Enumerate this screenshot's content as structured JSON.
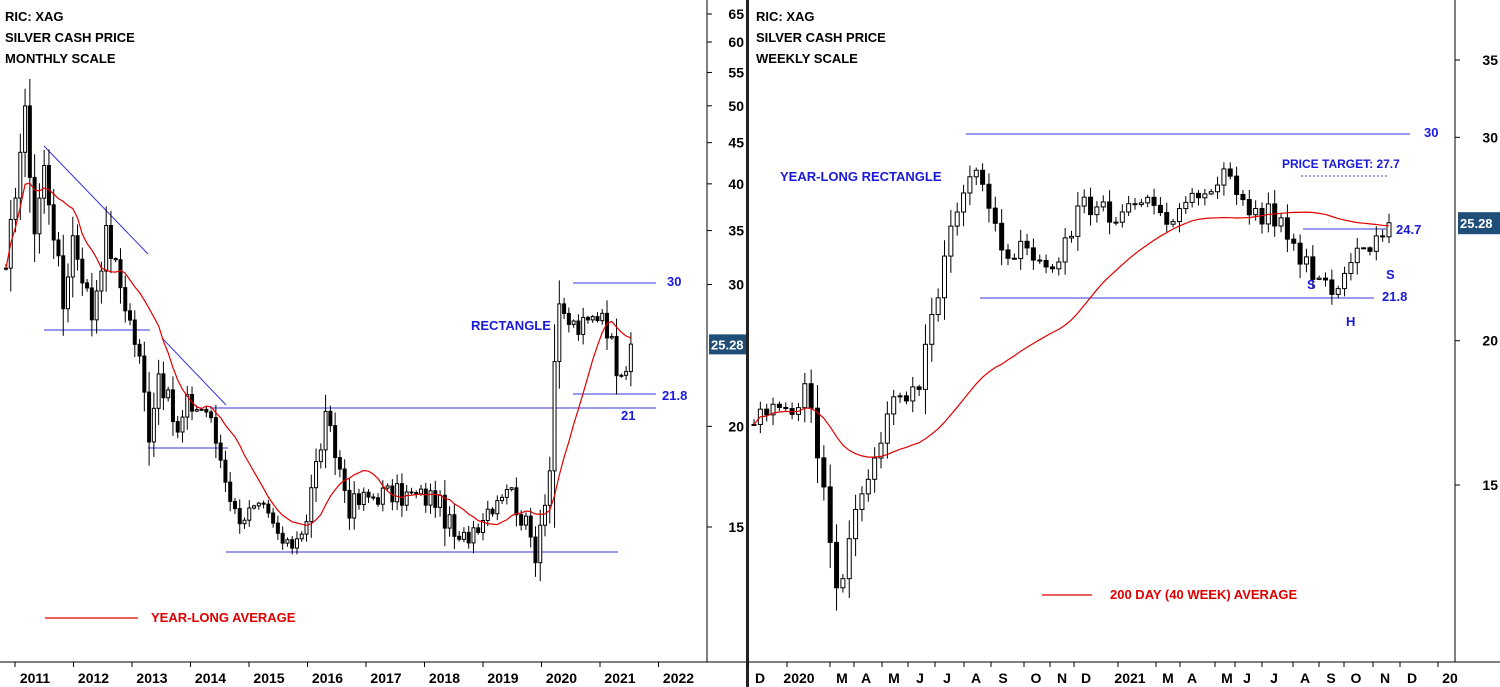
{
  "chart_data": [
    {
      "type": "candlestick",
      "ric": "RIC: XAG",
      "title": "SILVER CASH PRICE",
      "subtitle": "MONTHLY SCALE",
      "scale": "log",
      "ylim": [
        12,
        68
      ],
      "y_ticks": [
        15,
        20,
        30,
        35,
        40,
        45,
        50,
        55,
        60,
        65
      ],
      "x_ticks": [
        "2011",
        "2012",
        "2013",
        "2014",
        "2015",
        "2016",
        "2017",
        "2018",
        "2019",
        "2020",
        "2021",
        "2022"
      ],
      "last_price": "25.28",
      "legend": [
        {
          "label": "YEAR-LONG AVERAGE",
          "color": "#e00000"
        }
      ],
      "annotations": [
        "30",
        "RECTANGLE",
        "21.8",
        "21"
      ],
      "monthly_close_approx": [
        {
          "date": "2010-12",
          "close": 30.6
        },
        {
          "date": "2011-04",
          "close": 48.6
        },
        {
          "date": "2011-06",
          "close": 35.0
        },
        {
          "date": "2011-08",
          "close": 41.8
        },
        {
          "date": "2011-12",
          "close": 28.2
        },
        {
          "date": "2012-02",
          "close": 34.5
        },
        {
          "date": "2012-06",
          "close": 27.5
        },
        {
          "date": "2012-09",
          "close": 34.6
        },
        {
          "date": "2012-12",
          "close": 29.9
        },
        {
          "date": "2013-04",
          "close": 24.1
        },
        {
          "date": "2013-06",
          "close": 19.7
        },
        {
          "date": "2013-08",
          "close": 23.4
        },
        {
          "date": "2013-12",
          "close": 19.5
        },
        {
          "date": "2014-02",
          "close": 21.3
        },
        {
          "date": "2014-06",
          "close": 21.0
        },
        {
          "date": "2014-12",
          "close": 15.6
        },
        {
          "date": "2015-06",
          "close": 15.6
        },
        {
          "date": "2015-11",
          "close": 14.0
        },
        {
          "date": "2016-03",
          "close": 15.4
        },
        {
          "date": "2016-07",
          "close": 20.3
        },
        {
          "date": "2016-12",
          "close": 15.9
        },
        {
          "date": "2017-06",
          "close": 16.5
        },
        {
          "date": "2018-06",
          "close": 16.3
        },
        {
          "date": "2018-11",
          "close": 14.2
        },
        {
          "date": "2019-07",
          "close": 16.4
        },
        {
          "date": "2019-09",
          "close": 17.0
        },
        {
          "date": "2020-03",
          "close": 14.0
        },
        {
          "date": "2020-06",
          "close": 17.7
        },
        {
          "date": "2020-07",
          "close": 24.3
        },
        {
          "date": "2020-08",
          "close": 27.5
        },
        {
          "date": "2020-12",
          "close": 26.4
        },
        {
          "date": "2021-02",
          "close": 26.8
        },
        {
          "date": "2021-05",
          "close": 28.0
        },
        {
          "date": "2021-08",
          "close": 23.9
        },
        {
          "date": "2021-10",
          "close": 24.0
        },
        {
          "date": "2021-11",
          "close": 25.3
        }
      ]
    },
    {
      "type": "candlestick",
      "ric": "RIC: XAG",
      "title": "SILVER CASH PRICE",
      "subtitle": "WEEKLY SCALE",
      "scale": "log",
      "ylim": [
        13,
        40
      ],
      "y_ticks": [
        15,
        20,
        30,
        35
      ],
      "x_ticks": [
        "D",
        "2020",
        "M",
        "A",
        "M",
        "J",
        "J",
        "A",
        "S",
        "O",
        "N",
        "D",
        "2021",
        "M",
        "A",
        "M",
        "J",
        "J",
        "A",
        "S",
        "O",
        "N",
        "D",
        "20"
      ],
      "last_price": "25.28",
      "legend": [
        {
          "label": "200 DAY (40 WEEK) AVERAGE",
          "color": "#e00000"
        }
      ],
      "annotations": [
        "YEAR-LONG RECTANGLE",
        "30",
        "PRICE TARGET: 27.7",
        "24.7",
        "21.8",
        "S",
        "H",
        "S"
      ],
      "weekly_close_approx": [
        {
          "date": "2019-12",
          "close": 17.0
        },
        {
          "date": "2020-02",
          "close": 18.0
        },
        {
          "date": "2020-03",
          "close": 12.0
        },
        {
          "date": "2020-04",
          "close": 15.0
        },
        {
          "date": "2020-05",
          "close": 17.5
        },
        {
          "date": "2020-06",
          "close": 18.0
        },
        {
          "date": "2020-07",
          "close": 24.0
        },
        {
          "date": "2020-08",
          "close": 28.0
        },
        {
          "date": "2020-09",
          "close": 24.0
        },
        {
          "date": "2020-10",
          "close": 24.0
        },
        {
          "date": "2020-11",
          "close": 23.0
        },
        {
          "date": "2020-12",
          "close": 26.5
        },
        {
          "date": "2021-01",
          "close": 25.5
        },
        {
          "date": "2021-02",
          "close": 27.0
        },
        {
          "date": "2021-03",
          "close": 25.0
        },
        {
          "date": "2021-05",
          "close": 28.0
        },
        {
          "date": "2021-06",
          "close": 26.0
        },
        {
          "date": "2021-07",
          "close": 25.5
        },
        {
          "date": "2021-08",
          "close": 23.5
        },
        {
          "date": "2021-09",
          "close": 22.2
        },
        {
          "date": "2021-10",
          "close": 24.0
        },
        {
          "date": "2021-11",
          "close": 25.3
        }
      ]
    }
  ]
}
